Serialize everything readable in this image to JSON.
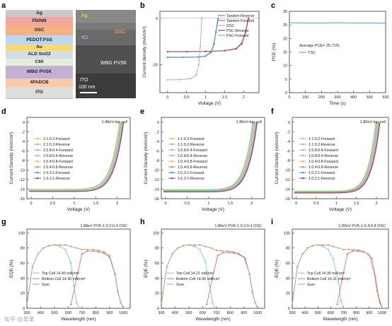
{
  "panel_labels": [
    "a",
    "b",
    "c",
    "d",
    "e",
    "f",
    "g",
    "h",
    "i"
  ],
  "panel_a": {
    "layers": [
      {
        "name": "Ag",
        "color": "#c9c9c9"
      },
      {
        "name": "PDINN",
        "color": "#f0a7a0"
      },
      {
        "name": "OSC",
        "color": "#f4b183"
      },
      {
        "name": "PEDOT:PSS",
        "color": "#bdd7ee"
      },
      {
        "name": "Au",
        "color": "#ffd966"
      },
      {
        "name": "ALD SnO2",
        "color": "#d6dce4"
      },
      {
        "name": "C60",
        "color": "#e2efda"
      },
      {
        "name": "WBG PVSK",
        "color": "#c5b0d5"
      },
      {
        "name": "4PADCB",
        "color": "#f8cbad"
      },
      {
        "name": "ITO",
        "color": "#dddddd"
      }
    ],
    "sem_labels": {
      "ag": "Ag",
      "osc": "OSC",
      "icl": "ICL",
      "pvsk": "WBG PVSK",
      "ito": "ITO",
      "scale": "100 nm"
    }
  },
  "panel_b": {
    "chart_data": {
      "type": "line",
      "xlabel": "Voltage (V)",
      "ylabel": "Current density (mA/cm²)",
      "xlim": [
        -0.2,
        2.4
      ],
      "ylim": [
        -32,
        3
      ],
      "xticks": [
        0.0,
        0.5,
        1.0,
        1.5,
        2.0
      ],
      "yticks": [
        0,
        -20
      ],
      "legend_position": "top-right",
      "series": [
        {
          "name": "Tandem-Reverse",
          "color": "#9e4f6e",
          "x": [
            0,
            0.5,
            1.0,
            1.5,
            1.8,
            1.95,
            2.05,
            2.13
          ],
          "y": [
            -14.4,
            -14.4,
            -14.3,
            -14.0,
            -13.2,
            -11.0,
            -6.0,
            0
          ]
        },
        {
          "name": "Tandem-Forward",
          "color": "#9e4f6e",
          "x": [
            0,
            0.5,
            1.0,
            1.5,
            1.8,
            1.95,
            2.05,
            2.12
          ],
          "y": [
            -14.3,
            -14.3,
            -14.2,
            -13.9,
            -13.0,
            -10.6,
            -5.5,
            0
          ]
        },
        {
          "name": "OSC",
          "color": "#b2a0c9",
          "x": [
            0,
            0.3,
            0.6,
            0.75,
            0.82,
            0.86,
            0.9
          ],
          "y": [
            -26.5,
            -26.4,
            -26.0,
            -24.5,
            -20.0,
            -12.0,
            0
          ]
        },
        {
          "name": "PSC-Reverse",
          "color": "#2a4f6e",
          "x": [
            0,
            0.4,
            0.8,
            1.0,
            1.15,
            1.22,
            1.27,
            1.33
          ],
          "y": [
            -16.8,
            -16.8,
            -16.7,
            -16.3,
            -14.5,
            -11.0,
            -6.0,
            0
          ]
        },
        {
          "name": "PSC-Forward",
          "color": "#6aa3c7",
          "x": [
            0,
            0.4,
            0.8,
            1.0,
            1.15,
            1.22,
            1.27,
            1.32
          ],
          "y": [
            -16.7,
            -16.7,
            -16.6,
            -16.2,
            -14.2,
            -10.5,
            -5.5,
            0
          ]
        }
      ]
    }
  },
  "panel_c": {
    "chart_data": {
      "type": "line",
      "xlabel": "Time (s)",
      "ylabel": "PCE (%)",
      "xlim": [
        0,
        600
      ],
      "ylim": [
        0,
        30
      ],
      "xticks": [
        0,
        100,
        200,
        300,
        400,
        500,
        600
      ],
      "yticks": [
        0,
        5,
        10,
        15,
        20,
        25,
        30
      ],
      "annotation": "Average PCE= 25.71%",
      "series": [
        {
          "name": "TSC",
          "color": "#5b8db8",
          "x": [
            0,
            100,
            200,
            300,
            400,
            500,
            600
          ],
          "y": [
            25.8,
            25.7,
            25.7,
            25.8,
            25.7,
            25.7,
            25.6
          ]
        }
      ]
    }
  },
  "panel_d": {
    "title": "1.88eV-top cell",
    "chart_data": {
      "type": "line",
      "xlabel": "Voltage (V)",
      "ylabel": "Current Density (mA/cm²)",
      "xlim": [
        -0.1,
        2.3
      ],
      "ylim": [
        -16,
        1
      ],
      "xticks": [
        0.0,
        0.5,
        1.0,
        1.5,
        2.0
      ],
      "yticks": [
        0,
        -2,
        -4,
        -6,
        -8,
        -10,
        -12,
        -14,
        -16
      ],
      "series": [
        {
          "name": "1:1:0.2-Forward",
          "color": "#a6d854",
          "voc": 2.05,
          "jsc": -14.0
        },
        {
          "name": "1:1:0.2-Reverse",
          "color": "#7fc97f",
          "voc": 2.07,
          "jsc": -14.1
        },
        {
          "name": "1:0.8:0.4-Forward",
          "color": "#b39ddb",
          "voc": 2.09,
          "jsc": -14.3
        },
        {
          "name": "1:0.8:0.4-Reverse",
          "color": "#9fa8da",
          "voc": 2.1,
          "jsc": -14.3
        },
        {
          "name": "1:0.4:0.8-Forward",
          "color": "#ffb74d",
          "voc": 2.12,
          "jsc": -14.4
        },
        {
          "name": "1:0.4:0.8-Reverse",
          "color": "#e57373",
          "voc": 2.13,
          "jsc": -14.4
        },
        {
          "name": "1:0.2:1-Forward",
          "color": "#4a90c2",
          "voc": 2.14,
          "jsc": -14.5
        },
        {
          "name": "1:0.2:1-Reverse",
          "color": "#8c4a6e",
          "voc": 2.15,
          "jsc": -14.5
        }
      ]
    }
  },
  "panel_e": {
    "title": "1.86eV-top cell",
    "chart_data": {
      "type": "line",
      "xlabel": "Voltage (V)",
      "ylabel": "Current Density (mA/cm²)",
      "xlim": [
        -0.1,
        2.3
      ],
      "ylim": [
        -16,
        1
      ],
      "xticks": [
        0.0,
        0.5,
        1.0,
        1.5,
        2.0
      ],
      "yticks": [
        0,
        -2,
        -4,
        -6,
        -8,
        -10,
        -12,
        -14,
        -16
      ],
      "series": [
        {
          "name": "1:1:0.2-Forward",
          "color": "#a6d854",
          "voc": 2.02,
          "jsc": -14.1
        },
        {
          "name": "1:1:0.2-Reverse",
          "color": "#7fc97f",
          "voc": 2.04,
          "jsc": -14.2
        },
        {
          "name": "1:0.8:0.4-Forward",
          "color": "#b39ddb",
          "voc": 2.06,
          "jsc": -14.3
        },
        {
          "name": "1:0.8:0.4-Reverse",
          "color": "#9fa8da",
          "voc": 2.08,
          "jsc": -14.4
        },
        {
          "name": "1:0.4:0.8-Forward",
          "color": "#ffb74d",
          "voc": 2.1,
          "jsc": -14.4
        },
        {
          "name": "1:0.4:0.8-Reverse",
          "color": "#e57373",
          "voc": 2.11,
          "jsc": -14.5
        },
        {
          "name": "1:0.2:1-Forward",
          "color": "#4a90c2",
          "voc": 2.12,
          "jsc": -14.5
        },
        {
          "name": "1:0.2:1-Reverse",
          "color": "#8c4a6e",
          "voc": 2.13,
          "jsc": -14.6
        }
      ]
    }
  },
  "panel_f": {
    "title": "1.80eV-top cell",
    "chart_data": {
      "type": "line",
      "xlabel": "Voltage (V)",
      "ylabel": "Current Density (mA/cm²)",
      "xlim": [
        -0.1,
        2.3
      ],
      "ylim": [
        -16,
        1
      ],
      "xticks": [
        0.0,
        0.5,
        1.0,
        1.5,
        2.0
      ],
      "yticks": [
        0,
        -2,
        -4,
        -6,
        -8,
        -10,
        -12,
        -14,
        -16
      ],
      "series": [
        {
          "name": "1:1:0.2-Forward",
          "color": "#a6d854",
          "voc": 1.98,
          "jsc": -14.4
        },
        {
          "name": "1:1:0.2-Reverse",
          "color": "#7fc97f",
          "voc": 2.0,
          "jsc": -14.5
        },
        {
          "name": "1:0.8:0.4-Forward",
          "color": "#b39ddb",
          "voc": 2.02,
          "jsc": -14.6
        },
        {
          "name": "1:0.8:0.4-Reverse",
          "color": "#9fa8da",
          "voc": 2.04,
          "jsc": -14.6
        },
        {
          "name": "1:0.4:0.8-Forward",
          "color": "#ffb74d",
          "voc": 2.06,
          "jsc": -14.7
        },
        {
          "name": "1:0.4:0.8-Reverse",
          "color": "#e57373",
          "voc": 2.07,
          "jsc": -14.7
        },
        {
          "name": "1:0.2:1-Forward",
          "color": "#4a90c2",
          "voc": 2.08,
          "jsc": -14.8
        },
        {
          "name": "1:0.2:1-Reverse",
          "color": "#8c4a6e",
          "voc": 2.09,
          "jsc": -14.8
        }
      ]
    }
  },
  "panel_g": {
    "title": "1.88eV PVK-1:0.2:0.4 OSC",
    "chart_data": {
      "type": "line",
      "xlabel": "Wavelength (nm)",
      "ylabel": "EQE (%)",
      "xlim": [
        300,
        1050
      ],
      "ylim": [
        0,
        105
      ],
      "xticks": [
        300,
        400,
        500,
        600,
        700,
        800,
        900,
        1000
      ],
      "yticks": [
        0,
        20,
        40,
        60,
        80,
        100
      ],
      "series": [
        {
          "name": "Top Cell 14.40 mA/cm²",
          "color": "#7fc7d9",
          "x": [
            300,
            340,
            380,
            420,
            460,
            500,
            540,
            580,
            620,
            640,
            660,
            680
          ],
          "y": [
            5,
            55,
            72,
            80,
            83,
            84,
            82,
            78,
            60,
            30,
            8,
            0
          ]
        },
        {
          "name": "Bottom Cell 14.30 mA/cm²",
          "color": "#d9727a",
          "x": [
            620,
            660,
            700,
            740,
            780,
            820,
            860,
            900,
            940,
            960,
            980,
            1000
          ],
          "y": [
            5,
            40,
            72,
            76,
            76,
            75,
            73,
            68,
            45,
            22,
            8,
            0
          ]
        },
        {
          "name": "Sum",
          "color": "#c29a7a",
          "x": [
            300,
            340,
            380,
            420,
            460,
            500,
            540,
            580,
            620,
            660,
            700,
            740,
            780,
            820,
            860,
            900,
            940,
            960,
            980,
            1000
          ],
          "y": [
            5,
            55,
            72,
            80,
            83,
            84,
            84,
            84,
            82,
            80,
            78,
            78,
            78,
            77,
            75,
            70,
            46,
            23,
            8,
            0
          ]
        }
      ]
    }
  },
  "panel_h": {
    "title": "1.86eV PVK-1:0.2:0.4 OSC",
    "chart_data": {
      "type": "line",
      "xlabel": "Wavelength (nm)",
      "ylabel": "EQE (%)",
      "xlim": [
        300,
        1050
      ],
      "ylim": [
        0,
        105
      ],
      "xticks": [
        300,
        400,
        500,
        600,
        700,
        800,
        900,
        1000
      ],
      "yticks": [
        0,
        20,
        40,
        60,
        80,
        100
      ],
      "series": [
        {
          "name": "Top Cell 14.21 mA/cm²",
          "color": "#7fc7d9",
          "x": [
            300,
            340,
            380,
            420,
            460,
            500,
            540,
            580,
            620,
            650,
            670,
            690
          ],
          "y": [
            5,
            55,
            72,
            80,
            83,
            84,
            82,
            78,
            62,
            30,
            8,
            0
          ]
        },
        {
          "name": "Bottom Cell 14.00 mA/cm²",
          "color": "#d9727a",
          "x": [
            630,
            670,
            710,
            750,
            790,
            830,
            870,
            910,
            940,
            960,
            980,
            1000
          ],
          "y": [
            5,
            40,
            70,
            74,
            74,
            73,
            71,
            66,
            45,
            22,
            8,
            0
          ]
        },
        {
          "name": "Sum",
          "color": "#c29a7a",
          "x": [
            300,
            340,
            380,
            420,
            460,
            500,
            540,
            580,
            620,
            660,
            700,
            740,
            780,
            820,
            860,
            900,
            940,
            960,
            980,
            1000
          ],
          "y": [
            5,
            55,
            72,
            80,
            83,
            84,
            84,
            84,
            82,
            80,
            77,
            76,
            76,
            75,
            73,
            68,
            46,
            23,
            8,
            0
          ]
        }
      ]
    }
  },
  "panel_i": {
    "title": "1.80eV PVK-1:0.4:0.8 OSC",
    "chart_data": {
      "type": "line",
      "xlabel": "Wavelength (nm)",
      "ylabel": "EQE (%)",
      "xlim": [
        300,
        1050
      ],
      "ylim": [
        0,
        105
      ],
      "xticks": [
        300,
        400,
        500,
        600,
        700,
        800,
        900,
        1000
      ],
      "yticks": [
        0,
        20,
        40,
        60,
        80,
        100
      ],
      "series": [
        {
          "name": "Top Cell 14.30 mA/cm²",
          "color": "#7fc7d9",
          "x": [
            300,
            340,
            380,
            420,
            460,
            500,
            540,
            580,
            620,
            660,
            680,
            700
          ],
          "y": [
            5,
            55,
            72,
            80,
            83,
            84,
            82,
            78,
            65,
            35,
            10,
            0
          ]
        },
        {
          "name": "Bottom Cell 14.31 mA/cm²",
          "color": "#d9727a",
          "x": [
            650,
            690,
            730,
            770,
            810,
            850,
            890,
            920,
            950,
            970,
            990,
            1000
          ],
          "y": [
            5,
            40,
            72,
            76,
            76,
            75,
            72,
            66,
            40,
            18,
            6,
            0
          ]
        },
        {
          "name": "Sum",
          "color": "#c29a7a",
          "x": [
            300,
            340,
            380,
            420,
            460,
            500,
            540,
            580,
            620,
            660,
            700,
            740,
            780,
            820,
            860,
            900,
            940,
            960,
            980,
            1000
          ],
          "y": [
            5,
            55,
            72,
            80,
            83,
            84,
            84,
            84,
            82,
            80,
            78,
            78,
            78,
            77,
            75,
            70,
            46,
            23,
            8,
            0
          ]
        }
      ]
    }
  },
  "watermark": "知乎 @某某"
}
